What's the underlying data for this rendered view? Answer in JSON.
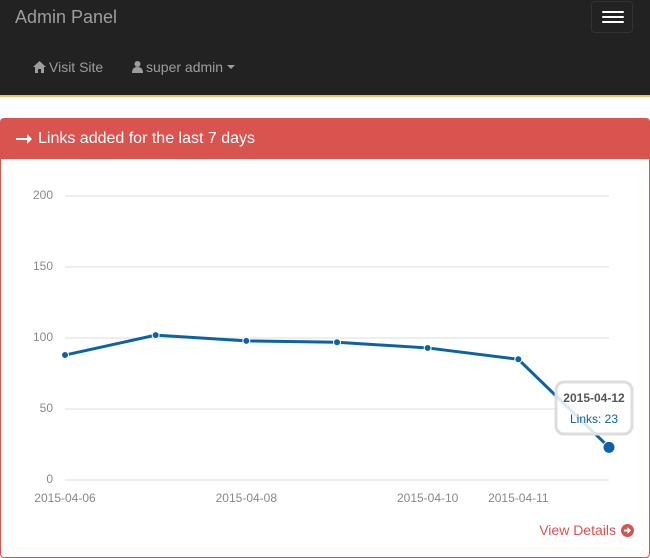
{
  "navbar": {
    "brand": "Admin Panel",
    "links": [
      "Visit Site",
      "super admin"
    ]
  },
  "panel": {
    "heading": "Links added for the last 7 days",
    "footer_link": "View Details"
  },
  "chart_data": {
    "type": "line",
    "categories": [
      "2015-04-06",
      null,
      "2015-04-08",
      null,
      "2015-04-10",
      "2015-04-11",
      null
    ],
    "series": [
      {
        "name": "Links",
        "color": "#0b62a4",
        "values": [
          88,
          102,
          98,
          97,
          93,
          85,
          23
        ]
      }
    ],
    "ylim": [
      0,
      200
    ],
    "yticks": [
      0,
      50,
      100,
      150,
      200
    ],
    "grid": true,
    "tooltip": {
      "title": "2015-04-12",
      "text": "Links: 23"
    }
  }
}
